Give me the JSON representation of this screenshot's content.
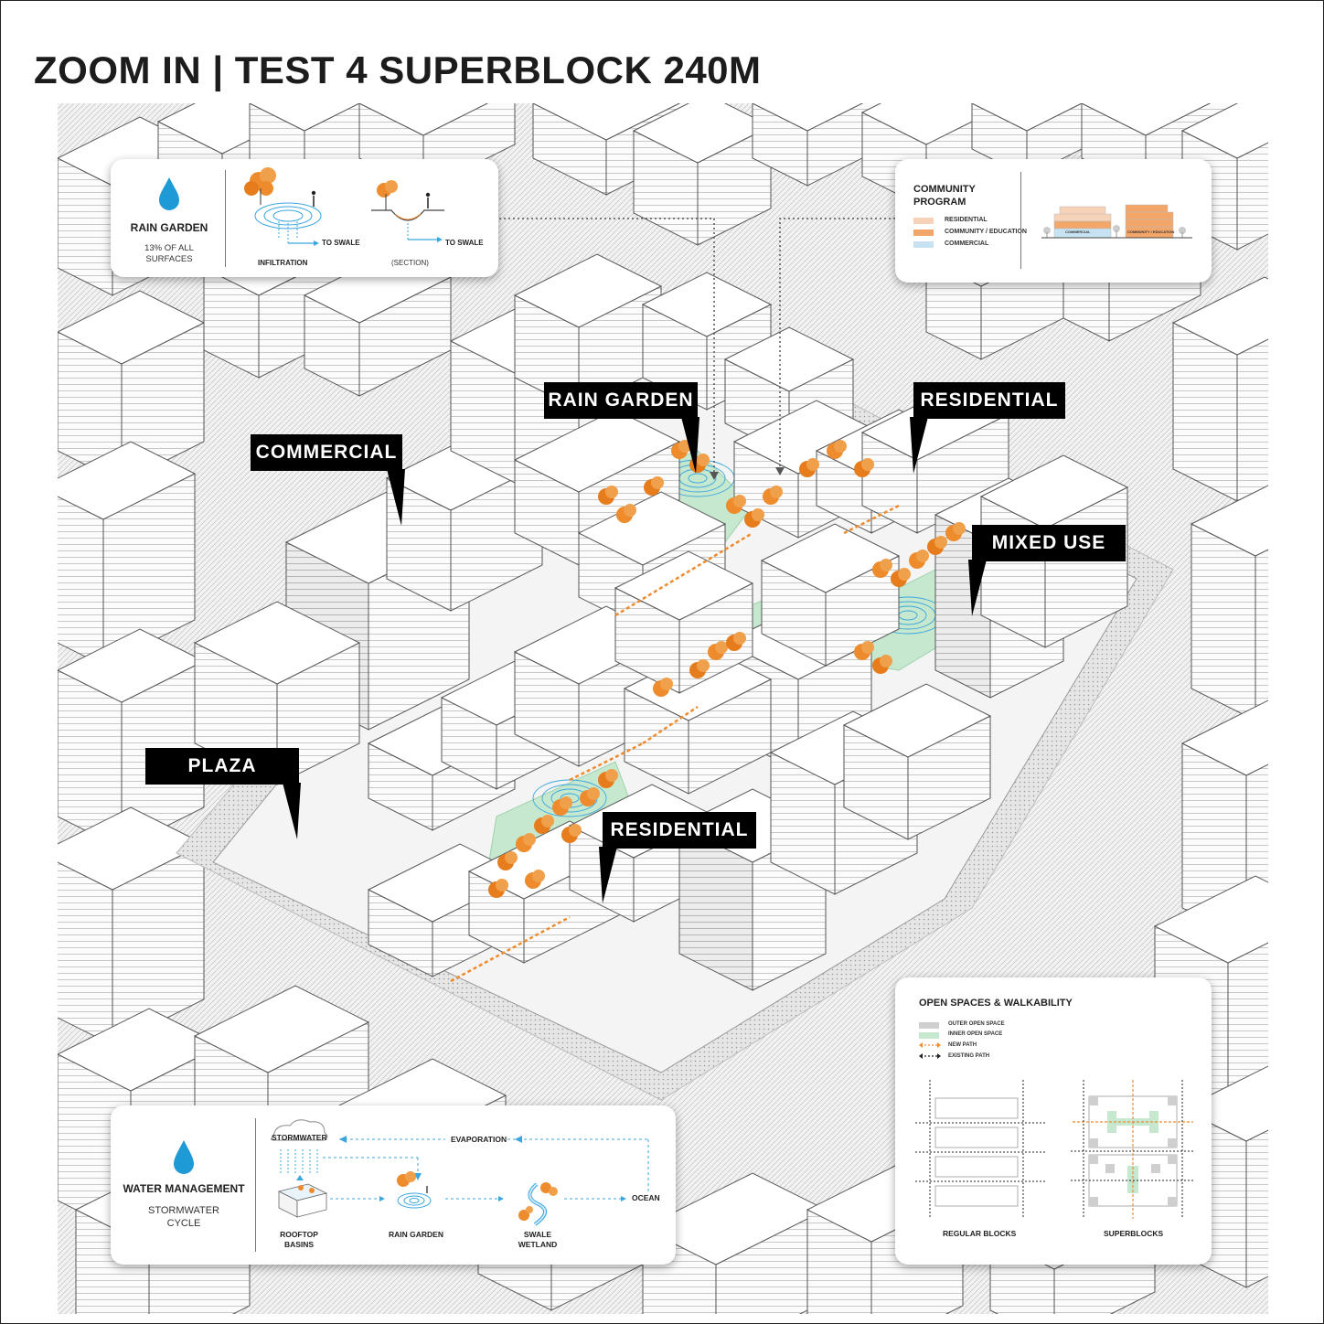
{
  "page": {
    "title": "ZOOM IN | TEST 4 SUPERBLOCK 240M"
  },
  "callouts": {
    "commercial": "COMMERCIAL",
    "rain_garden": "RAIN GARDEN",
    "residential_top": "RESIDENTIAL",
    "mixed_use": "MIXED USE",
    "plaza": "PLAZA",
    "residential_bottom": "RESIDENTIAL"
  },
  "rain_garden_panel": {
    "title": "RAIN GARDEN",
    "stat": "13% OF ALL SURFACES",
    "to_swale_1": "TO SWALE",
    "infiltration": "INFILTRATION",
    "to_swale_2": "TO SWALE",
    "section": "(SECTION)"
  },
  "community_panel": {
    "title": "COMMUNITY PROGRAM",
    "legend": [
      "RESIDENTIAL",
      "COMMUNITY / EDUCATION",
      "COMMERCIAL"
    ],
    "diagram_label_commercial": "COMMERCIAL",
    "diagram_label_community": "COMMUNITY / EDUCATION"
  },
  "water_panel": {
    "title": "WATER MANAGEMENT",
    "subtitle": "STORMWATER CYCLE",
    "stormwater": "STORMWATER",
    "evaporation": "EVAPORATION",
    "rooftop_basins": "ROOFTOP BASINS",
    "rain_garden": "RAIN GARDEN",
    "swale_wetland": "SWALE WETLAND",
    "ocean": "OCEAN"
  },
  "open_space_panel": {
    "title": "OPEN SPACES & WALKABILITY",
    "legend": [
      "OUTER OPEN SPACE",
      "INNER OPEN SPACE",
      "NEW PATH",
      "EXISTING PATH"
    ],
    "regular_blocks": "REGULAR BLOCKS",
    "superblocks": "SUPERBLOCKS"
  },
  "colors": {
    "residential": "#f6d2b8",
    "community": "#f2a66a",
    "commercial": "#c7e3f2",
    "orange_tree": "#ee8b2c",
    "water_blue": "#3aa6de",
    "green_space": "#c6e8cf",
    "outer_space": "#cfcfcf"
  }
}
